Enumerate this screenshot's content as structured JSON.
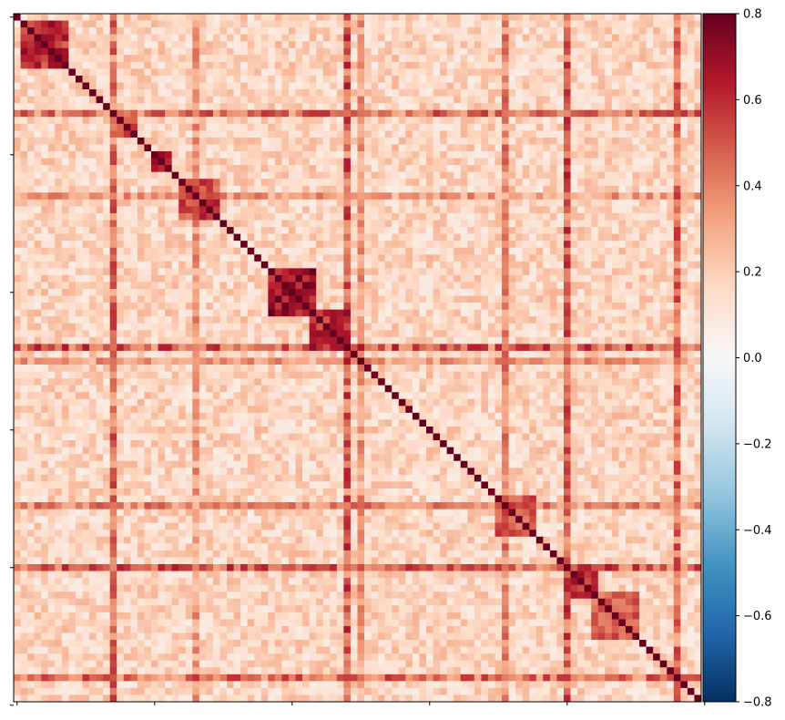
{
  "chart_data": {
    "type": "heatmap",
    "title": "",
    "xlabel": "",
    "ylabel": "",
    "n": 100,
    "diagonal_value": 1.0,
    "colormap": "RdBu_r",
    "vmin": -0.8,
    "vmax": 0.8,
    "colormap_stops": [
      "#053061",
      "#2166ac",
      "#4393c3",
      "#92c5de",
      "#d1e5f0",
      "#f7f7f7",
      "#fddbc7",
      "#f4a582",
      "#d6604d",
      "#b2182b",
      "#67001f"
    ],
    "x_tick_labels": [
      "",
      "",
      "",
      "",
      "",
      ""
    ],
    "y_tick_labels": [
      "",
      "",
      "",
      "",
      "",
      ""
    ],
    "colorbar": {
      "ticks": [
        0.8,
        0.6,
        0.4,
        0.2,
        0.0,
        -0.2,
        -0.4,
        -0.6,
        -0.8
      ],
      "tick_labels": [
        "0.8",
        "0.6",
        "0.4",
        "0.2",
        "0.0",
        "−0.2",
        "−0.4",
        "−0.6",
        "−0.8"
      ]
    },
    "blocks": [
      {
        "range": [
          1,
          7
        ],
        "value": 0.6
      },
      {
        "range": [
          15,
          17
        ],
        "value": 0.5
      },
      {
        "range": [
          20,
          22
        ],
        "value": 0.6
      },
      {
        "range": [
          24,
          29
        ],
        "value": 0.55
      },
      {
        "range": [
          37,
          43
        ],
        "value": 0.7
      },
      {
        "range": [
          43,
          48
        ],
        "value": 0.6
      },
      {
        "range": [
          70,
          75
        ],
        "value": 0.5
      },
      {
        "range": [
          80,
          84
        ],
        "value": 0.6
      },
      {
        "range": [
          84,
          90
        ],
        "value": 0.5
      }
    ],
    "hub_rows": [
      {
        "index": 14,
        "strength": 0.45
      },
      {
        "index": 48,
        "strength": 0.5
      },
      {
        "index": 80,
        "strength": 0.5
      },
      {
        "index": 50,
        "strength": 0.35
      },
      {
        "index": 26,
        "strength": 0.35
      },
      {
        "index": 71,
        "strength": 0.4
      },
      {
        "index": 96,
        "strength": 0.45
      }
    ]
  }
}
